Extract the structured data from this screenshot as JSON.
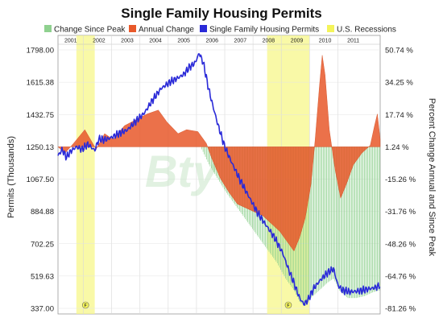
{
  "chart_data": {
    "type": "line",
    "title": "Single Family Housing Permits",
    "left_axis_label": "Permits (Thousands)",
    "right_axis_label": "Percent Change Annual and Since Peak",
    "legend": [
      {
        "name": "Change Since Peak",
        "color": "#8fd18f"
      },
      {
        "name": "Annual Change",
        "color": "#e8582a"
      },
      {
        "name": "Single Family Housing Permits",
        "color": "#2a2ad8"
      },
      {
        "name": "U.S. Recessions",
        "color": "#f4f45a"
      }
    ],
    "x_year_labels": [
      "2001",
      "2002",
      "2003",
      "2004",
      "2005",
      "2006",
      "2007",
      "2008",
      "2009",
      "2010",
      "2011"
    ],
    "x_range": [
      2000.55,
      2011.95
    ],
    "left_ticks": [
      "1798.00",
      "1615.38",
      "1432.75",
      "1250.13",
      "1067.50",
      "884.88",
      "702.25",
      "519.63",
      "337.00"
    ],
    "left_ylim": [
      337.0,
      1798.0
    ],
    "right_ticks": [
      "50.74 %",
      "34.25 %",
      "17.74 %",
      "1.24 %",
      "-15.26 %",
      "-31.76 %",
      "-48.26 %",
      "-64.76 %",
      "-81.26 %"
    ],
    "right_ylim": [
      -81.26,
      50.74
    ],
    "recessions": [
      [
        2001.2,
        2001.85
      ],
      [
        2007.95,
        2009.45
      ]
    ],
    "recession_marker": "F",
    "watermark": "Bty",
    "series": [
      {
        "name": "Single Family Housing Permits",
        "axis": "left",
        "color": "#2a2ad8",
        "points": [
          [
            2000.55,
            1200
          ],
          [
            2000.7,
            1235
          ],
          [
            2000.85,
            1190
          ],
          [
            2001.0,
            1225
          ],
          [
            2001.2,
            1250
          ],
          [
            2001.4,
            1235
          ],
          [
            2001.6,
            1265
          ],
          [
            2001.85,
            1230
          ],
          [
            2002.0,
            1295
          ],
          [
            2002.2,
            1290
          ],
          [
            2002.4,
            1300
          ],
          [
            2002.7,
            1325
          ],
          [
            2003.0,
            1345
          ],
          [
            2003.3,
            1395
          ],
          [
            2003.6,
            1440
          ],
          [
            2003.9,
            1515
          ],
          [
            2004.2,
            1580
          ],
          [
            2004.5,
            1615
          ],
          [
            2004.8,
            1640
          ],
          [
            2005.0,
            1660
          ],
          [
            2005.2,
            1700
          ],
          [
            2005.4,
            1725
          ],
          [
            2005.55,
            1780
          ],
          [
            2005.7,
            1720
          ],
          [
            2005.85,
            1600
          ],
          [
            2006.0,
            1500
          ],
          [
            2006.2,
            1380
          ],
          [
            2006.45,
            1250
          ],
          [
            2006.7,
            1160
          ],
          [
            2007.0,
            1060
          ],
          [
            2007.3,
            970
          ],
          [
            2007.6,
            880
          ],
          [
            2007.9,
            810
          ],
          [
            2008.2,
            740
          ],
          [
            2008.5,
            650
          ],
          [
            2008.7,
            560
          ],
          [
            2008.9,
            480
          ],
          [
            2009.1,
            395
          ],
          [
            2009.25,
            360
          ],
          [
            2009.4,
            385
          ],
          [
            2009.6,
            450
          ],
          [
            2009.85,
            500
          ],
          [
            2010.1,
            540
          ],
          [
            2010.3,
            560
          ],
          [
            2010.45,
            470
          ],
          [
            2010.6,
            440
          ],
          [
            2010.9,
            430
          ],
          [
            2011.2,
            435
          ],
          [
            2011.5,
            445
          ],
          [
            2011.8,
            455
          ],
          [
            2011.95,
            470
          ]
        ]
      },
      {
        "name": "Annual Change",
        "axis": "right",
        "color": "#e8582a",
        "points": [
          [
            2000.55,
            1.24
          ],
          [
            2000.8,
            -2
          ],
          [
            2001.1,
            3
          ],
          [
            2001.5,
            10
          ],
          [
            2001.9,
            0
          ],
          [
            2002.2,
            8
          ],
          [
            2002.5,
            5
          ],
          [
            2002.9,
            12
          ],
          [
            2003.3,
            15
          ],
          [
            2003.7,
            18
          ],
          [
            2004.1,
            20
          ],
          [
            2004.4,
            14
          ],
          [
            2004.8,
            8
          ],
          [
            2005.1,
            10
          ],
          [
            2005.5,
            9
          ],
          [
            2005.8,
            3
          ],
          [
            2006.0,
            -5
          ],
          [
            2006.3,
            -15
          ],
          [
            2006.6,
            -22
          ],
          [
            2006.9,
            -28
          ],
          [
            2007.2,
            -30
          ],
          [
            2007.5,
            -32
          ],
          [
            2007.8,
            -34
          ],
          [
            2008.1,
            -38
          ],
          [
            2008.4,
            -42
          ],
          [
            2008.7,
            -48
          ],
          [
            2008.9,
            -52
          ],
          [
            2009.1,
            -45
          ],
          [
            2009.3,
            -35
          ],
          [
            2009.5,
            -18
          ],
          [
            2009.65,
            5
          ],
          [
            2009.8,
            32
          ],
          [
            2009.9,
            48
          ],
          [
            2010.0,
            38
          ],
          [
            2010.15,
            10
          ],
          [
            2010.35,
            -10
          ],
          [
            2010.55,
            -25
          ],
          [
            2010.75,
            -18
          ],
          [
            2011.0,
            -8
          ],
          [
            2011.3,
            -2
          ],
          [
            2011.6,
            2
          ],
          [
            2011.75,
            12
          ],
          [
            2011.85,
            18
          ],
          [
            2011.95,
            5
          ]
        ]
      },
      {
        "name": "Change Since Peak",
        "axis": "right",
        "color": "#8fd18f",
        "points": [
          [
            2005.6,
            1.24
          ],
          [
            2005.9,
            -8
          ],
          [
            2006.2,
            -15
          ],
          [
            2006.5,
            -22
          ],
          [
            2006.8,
            -28
          ],
          [
            2007.1,
            -34
          ],
          [
            2007.4,
            -40
          ],
          [
            2007.7,
            -46
          ],
          [
            2008.0,
            -52
          ],
          [
            2008.3,
            -58
          ],
          [
            2008.6,
            -66
          ],
          [
            2008.9,
            -72
          ],
          [
            2009.1,
            -78
          ],
          [
            2009.3,
            -80
          ],
          [
            2009.5,
            -76
          ],
          [
            2009.8,
            -72
          ],
          [
            2010.1,
            -68
          ],
          [
            2010.3,
            -66
          ],
          [
            2010.5,
            -72
          ],
          [
            2010.8,
            -76
          ],
          [
            2011.1,
            -76
          ],
          [
            2011.4,
            -75
          ],
          [
            2011.7,
            -73
          ],
          [
            2011.95,
            -72
          ]
        ]
      }
    ]
  }
}
